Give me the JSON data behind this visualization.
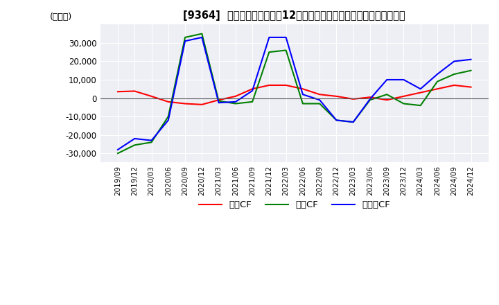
{
  "title": "[9364]  キャッシュフローの12か月移動合計の対前年同期増減額の推移",
  "ylabel": "(百万円)",
  "ylim": [
    -35000,
    40000
  ],
  "yticks": [
    -30000,
    -20000,
    -10000,
    0,
    10000,
    20000,
    30000
  ],
  "x_labels": [
    "2019/09",
    "2019/12",
    "2020/03",
    "2020/06",
    "2020/09",
    "2020/12",
    "2021/03",
    "2021/06",
    "2021/09",
    "2021/12",
    "2022/03",
    "2022/06",
    "2022/09",
    "2022/12",
    "2023/03",
    "2023/06",
    "2023/09",
    "2023/12",
    "2024/03",
    "2024/06",
    "2024/09",
    "2024/12"
  ],
  "operating_cf": [
    3500,
    3800,
    1000,
    -2000,
    -3000,
    -3500,
    -1000,
    1000,
    5000,
    7000,
    7000,
    5000,
    2000,
    1000,
    -500,
    500,
    -1000,
    1000,
    3000,
    5000,
    7000,
    6000
  ],
  "investing_cf": [
    -30000,
    -25500,
    -24000,
    -10000,
    33000,
    35000,
    -1500,
    -3000,
    -2000,
    25000,
    26000,
    -3000,
    -3000,
    -12000,
    -13000,
    -1000,
    2000,
    -3000,
    -4000,
    9000,
    13000,
    15000
  ],
  "free_cf": [
    -28000,
    -22000,
    -23000,
    -12000,
    31000,
    33000,
    -2500,
    -2000,
    4000,
    33000,
    33000,
    2000,
    -1000,
    -12000,
    -13000,
    -500,
    10000,
    10000,
    5000,
    13000,
    20000,
    21000
  ],
  "operating_color": "#ff0000",
  "investing_color": "#008000",
  "free_color": "#0000ff",
  "bg_color": "#ffffff",
  "plot_bg_color": "#eeeef5",
  "grid_color": "#ffffff",
  "legend_labels": [
    "営業CF",
    "投資CF",
    "フリーCF"
  ]
}
